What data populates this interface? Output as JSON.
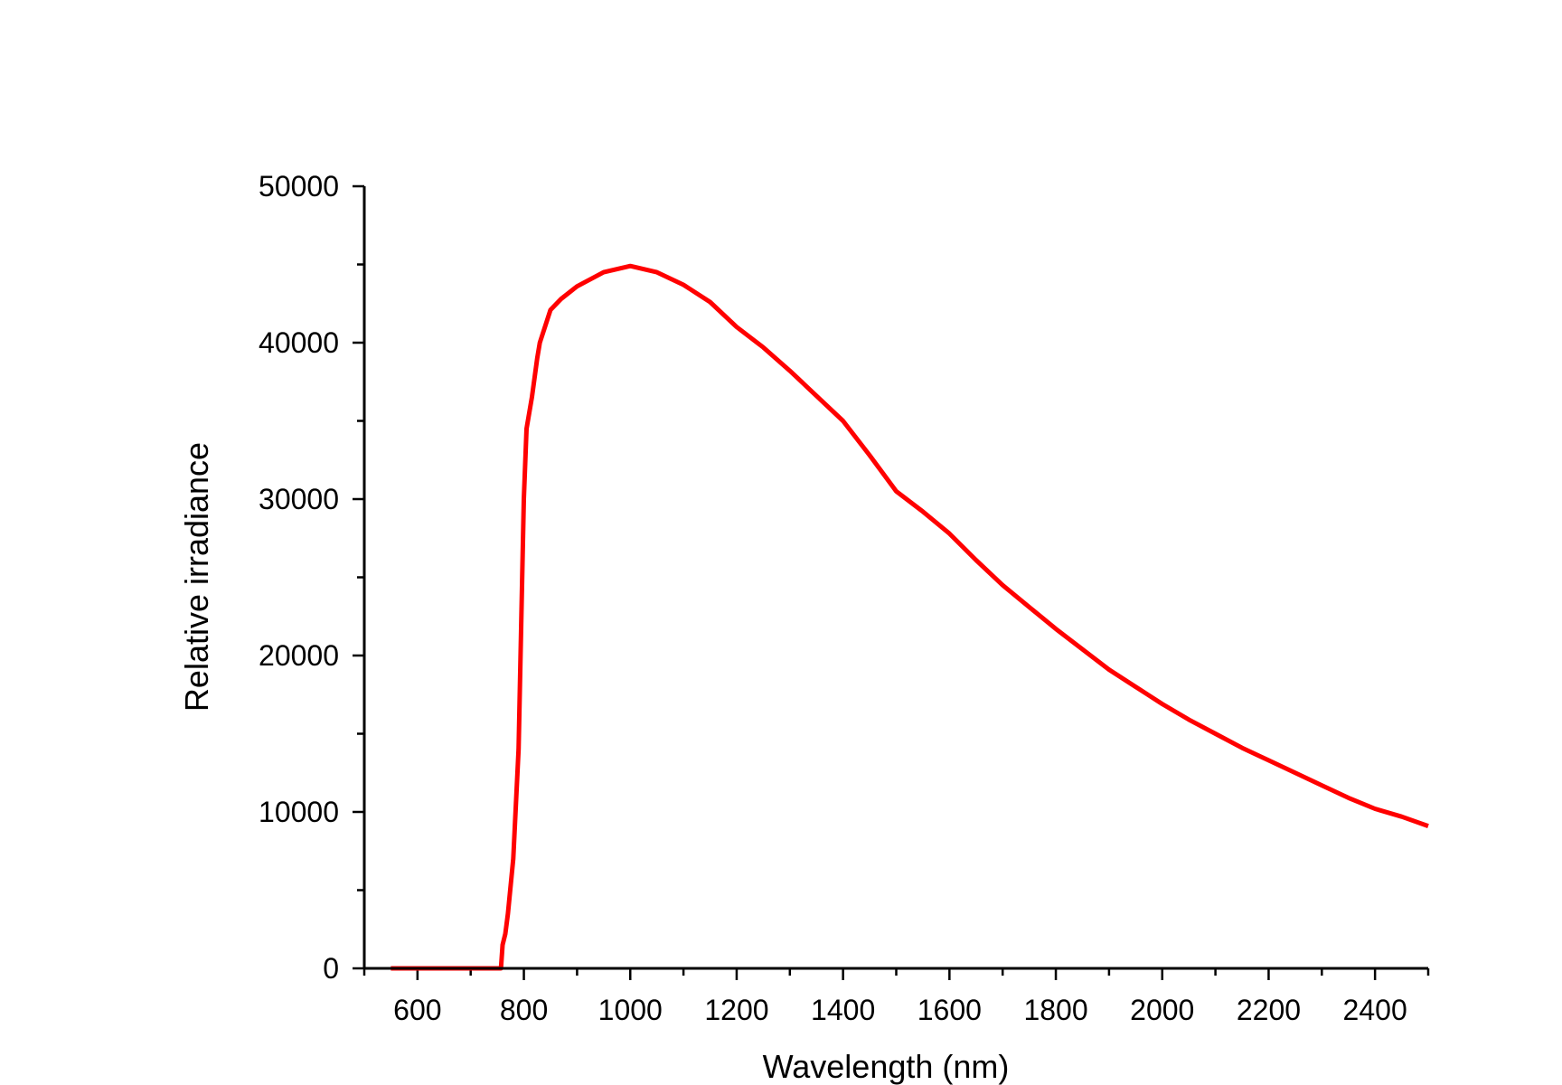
{
  "chart_data": {
    "type": "line",
    "title": "",
    "xlabel": "Wavelength (nm)",
    "ylabel": "Relative irradiance",
    "xlim": [
      500,
      2500
    ],
    "ylim": [
      0,
      50000
    ],
    "x_ticks": [
      600,
      800,
      1000,
      1200,
      1400,
      1600,
      1800,
      2000,
      2200,
      2400
    ],
    "x_tick_labels": [
      "600",
      "800",
      "1000",
      "1200",
      "1400",
      "1600",
      "1800",
      "2000",
      "2200",
      "2400"
    ],
    "y_ticks": [
      0,
      10000,
      20000,
      30000,
      40000,
      50000
    ],
    "y_tick_labels": [
      "0",
      "10000",
      "20000",
      "30000",
      "40000",
      "50000"
    ],
    "x_minor_step": 100,
    "y_minor_step": 5000,
    "grid": false,
    "legend": "none",
    "series": [
      {
        "color": "#ff0000",
        "x": [
          550,
          757,
          760,
          765,
          770,
          780,
          790,
          795,
          800,
          805,
          815,
          825,
          830,
          850,
          870,
          900,
          950,
          1000,
          1050,
          1100,
          1150,
          1200,
          1250,
          1300,
          1350,
          1400,
          1450,
          1500,
          1550,
          1600,
          1650,
          1700,
          1750,
          1800,
          1850,
          1900,
          1950,
          2000,
          2050,
          2100,
          2150,
          2200,
          2250,
          2300,
          2350,
          2400,
          2450,
          2500
        ],
        "y": [
          0,
          0,
          1500,
          2200,
          3500,
          7000,
          14000,
          22000,
          30000,
          34500,
          36500,
          39000,
          40000,
          42100,
          42800,
          43600,
          44500,
          44900,
          44500,
          43700,
          42600,
          41000,
          39700,
          38200,
          36600,
          35000,
          32800,
          30500,
          29200,
          27800,
          26100,
          24500,
          23100,
          21700,
          20400,
          19100,
          18000,
          16900,
          15900,
          15000,
          14100,
          13300,
          12500,
          11700,
          10900,
          10200,
          9700,
          9100
        ]
      }
    ]
  }
}
